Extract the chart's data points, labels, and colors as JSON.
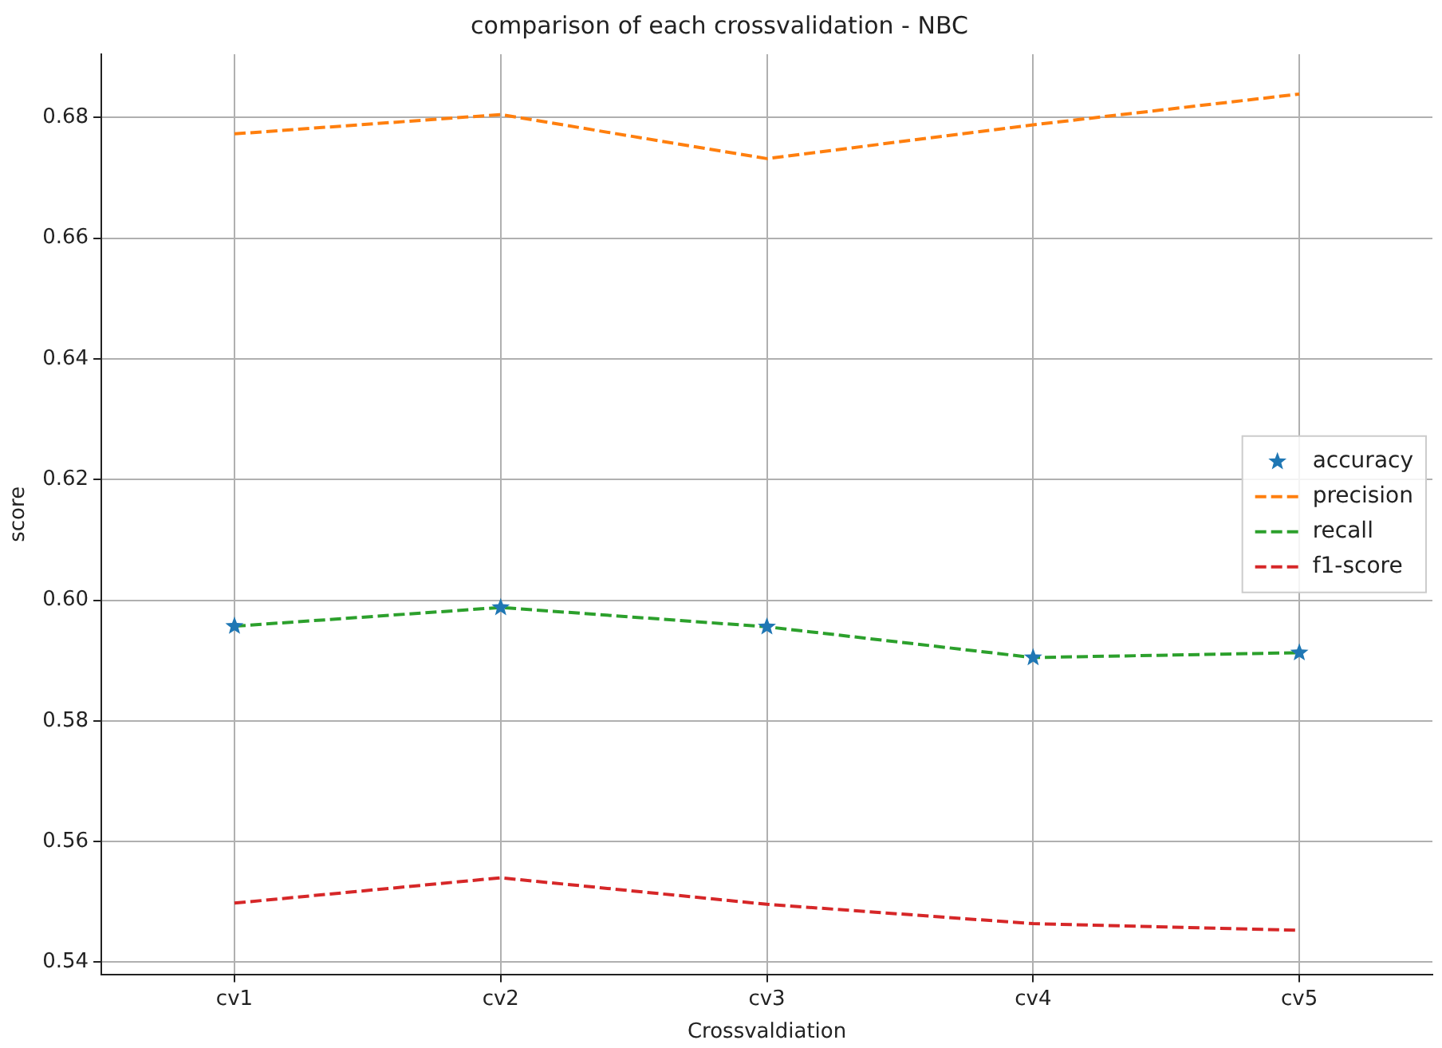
{
  "chart_data": {
    "type": "line",
    "title": "comparison of each crossvalidation - NBC",
    "xlabel": "Crossvaldiation",
    "ylabel": "score",
    "categories": [
      "cv1",
      "cv2",
      "cv3",
      "cv4",
      "cv5"
    ],
    "series": [
      {
        "name": "accuracy",
        "type": "scatter",
        "marker": "star",
        "color": "#1f77b4",
        "values": [
          0.5957,
          0.5988,
          0.5956,
          0.5905,
          0.5913
        ]
      },
      {
        "name": "precision",
        "line_style": "dashed",
        "marker": "none",
        "color": "#ff7f0e",
        "values": [
          0.6773,
          0.6805,
          0.6732,
          0.6788,
          0.6839
        ]
      },
      {
        "name": "recall",
        "line_style": "dashed",
        "marker": "none",
        "color": "#2ca02c",
        "values": [
          0.5957,
          0.5988,
          0.5956,
          0.5905,
          0.5913
        ]
      },
      {
        "name": "f1-score",
        "line_style": "dashed",
        "marker": "none",
        "color": "#d62728",
        "values": [
          0.5498,
          0.554,
          0.5496,
          0.5464,
          0.5453
        ]
      }
    ],
    "ylim": [
      0.538,
      0.6905
    ],
    "yticks": [
      0.54,
      0.56,
      0.58,
      {
        "value": 0.6,
        "label": "0.60"
      },
      0.62,
      0.64,
      0.66,
      0.68
    ],
    "grid": true,
    "legend": "right"
  }
}
